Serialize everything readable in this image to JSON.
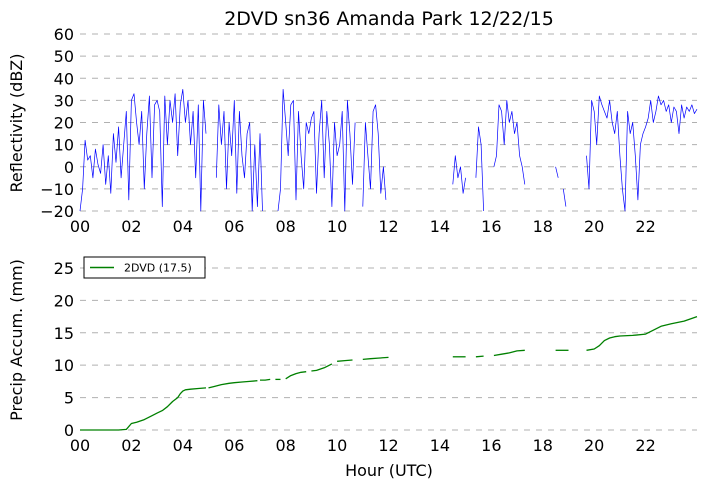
{
  "chart_data": [
    {
      "type": "line",
      "title": "2DVD sn36 Amanda Park 12/22/15",
      "ylabel": "Reflectivity (dBZ)",
      "xlabel": "",
      "xlim": [
        0,
        24
      ],
      "ylim": [
        -20,
        60
      ],
      "x_ticks": [
        0,
        2,
        4,
        6,
        8,
        10,
        12,
        14,
        16,
        18,
        20,
        22
      ],
      "x_tick_labels": [
        "00",
        "02",
        "04",
        "06",
        "08",
        "10",
        "12",
        "14",
        "16",
        "18",
        "20",
        "22"
      ],
      "y_ticks": [
        -20,
        -10,
        0,
        10,
        20,
        30,
        40,
        50,
        60
      ],
      "y_tick_labels": [
        "−20",
        "−10",
        "0",
        "10",
        "20",
        "30",
        "40",
        "50",
        "60"
      ],
      "grid": "horizontal dashed",
      "color": "#0000ff",
      "series": [
        {
          "segments": [
            {
              "x": [
                0.0,
                0.1,
                0.2,
                0.3,
                0.4,
                0.5,
                0.6,
                0.7,
                0.8,
                0.9,
                1.0,
                1.1,
                1.2,
                1.3,
                1.4,
                1.5,
                1.6,
                1.7,
                1.8,
                1.9,
                2.0,
                2.1,
                2.2,
                2.3,
                2.4,
                2.5,
                2.6,
                2.7,
                2.8,
                2.9,
                3.0,
                3.1,
                3.2,
                3.3,
                3.4,
                3.5,
                3.6,
                3.7,
                3.8,
                3.9,
                4.0,
                4.1,
                4.2,
                4.3,
                4.4,
                4.5,
                4.6,
                4.7,
                4.8,
                4.9
              ],
              "y": [
                -20,
                -10,
                12,
                3,
                5,
                -5,
                8,
                1,
                -3,
                10,
                -8,
                5,
                -12,
                15,
                2,
                18,
                -5,
                10,
                25,
                -15,
                30,
                33,
                20,
                10,
                25,
                -10,
                15,
                32,
                -5,
                28,
                30,
                25,
                -18,
                32,
                10,
                30,
                20,
                33,
                5,
                28,
                35,
                20,
                30,
                10,
                25,
                -5,
                28,
                -20,
                30,
                15
              ]
            },
            {
              "x": [
                5.3,
                5.4,
                5.5,
                5.6,
                5.7,
                5.8,
                5.9,
                6.0,
                6.1,
                6.2,
                6.3,
                6.4,
                6.5,
                6.6,
                6.7,
                6.8,
                6.9,
                7.0,
                7.1
              ],
              "y": [
                -5,
                28,
                10,
                25,
                -10,
                20,
                5,
                30,
                -12,
                25,
                5,
                -5,
                15,
                20,
                -20,
                10,
                -18,
                15,
                -20
              ]
            },
            {
              "x": [
                7.7,
                7.8,
                7.9,
                8.0,
                8.1,
                8.2,
                8.3,
                8.4,
                8.5,
                8.6,
                8.7,
                8.8,
                8.9,
                9.0,
                9.1,
                9.2,
                9.3,
                9.4,
                9.5,
                9.6,
                9.7,
                9.8,
                9.9,
                10.0,
                10.1,
                10.2,
                10.3,
                10.4,
                10.5,
                10.6,
                10.7
              ],
              "y": [
                -20,
                -10,
                35,
                20,
                5,
                28,
                30,
                -15,
                25,
                5,
                -10,
                20,
                15,
                22,
                25,
                -12,
                15,
                30,
                -5,
                25,
                10,
                -18,
                20,
                5,
                10,
                25,
                -20,
                30,
                15,
                -8,
                20
              ]
            },
            {
              "x": [
                11.0,
                11.1,
                11.2,
                11.3,
                11.4,
                11.5,
                11.6,
                11.7,
                11.8,
                11.9
              ],
              "y": [
                -18,
                20,
                5,
                -10,
                25,
                28,
                15,
                -12,
                0,
                -15
              ]
            },
            {
              "x": [
                14.5,
                14.6,
                14.7,
                14.8,
                14.9,
                15.0
              ],
              "y": [
                -8,
                5,
                -5,
                0,
                -12,
                -5
              ]
            },
            {
              "x": [
                15.4,
                15.5,
                15.6,
                15.7
              ],
              "y": [
                -5,
                18,
                10,
                -20
              ]
            },
            {
              "x": [
                16.1,
                16.2,
                16.3,
                16.4,
                16.5,
                16.6,
                16.7,
                16.8,
                16.9,
                17.0,
                17.1,
                17.2,
                17.3
              ],
              "y": [
                0,
                5,
                28,
                25,
                10,
                30,
                20,
                25,
                15,
                20,
                5,
                0,
                -8
              ]
            },
            {
              "x": [
                18.5,
                18.6
              ],
              "y": [
                0,
                -5
              ]
            },
            {
              "x": [
                18.8,
                18.9
              ],
              "y": [
                -10,
                -18
              ]
            },
            {
              "x": [
                19.7,
                19.8,
                19.9,
                20.0,
                20.1,
                20.2,
                20.3,
                20.4,
                20.5,
                20.6,
                20.7,
                20.8,
                20.9,
                21.0,
                21.1,
                21.2,
                21.3,
                21.4,
                21.5,
                21.6,
                21.7,
                21.8,
                21.9,
                22.0,
                22.1,
                22.2,
                22.3,
                22.4,
                22.5,
                22.6,
                22.7,
                22.8,
                22.9,
                23.0,
                23.1,
                23.2,
                23.3,
                23.4,
                23.5,
                23.6,
                23.7,
                23.8,
                23.9,
                24.0
              ],
              "y": [
                5,
                -10,
                30,
                25,
                10,
                32,
                28,
                25,
                22,
                30,
                20,
                15,
                25,
                5,
                -10,
                -20,
                25,
                15,
                20,
                5,
                -15,
                10,
                15,
                18,
                22,
                30,
                20,
                25,
                32,
                28,
                30,
                25,
                28,
                20,
                27,
                25,
                15,
                28,
                22,
                27,
                25,
                28,
                24,
                26
              ]
            }
          ]
        }
      ]
    },
    {
      "type": "line",
      "title": "",
      "ylabel": "Precip Accum. (mm)",
      "xlabel": "Hour (UTC)",
      "xlim": [
        0,
        24
      ],
      "ylim": [
        0,
        27
      ],
      "x_ticks": [
        0,
        2,
        4,
        6,
        8,
        10,
        12,
        14,
        16,
        18,
        20,
        22
      ],
      "x_tick_labels": [
        "00",
        "02",
        "04",
        "06",
        "08",
        "10",
        "12",
        "14",
        "16",
        "18",
        "20",
        "22"
      ],
      "y_ticks": [
        0,
        5,
        10,
        15,
        20,
        25
      ],
      "y_tick_labels": [
        "0",
        "5",
        "10",
        "15",
        "20",
        "25"
      ],
      "grid": "horizontal dashed",
      "legend": "top-left",
      "series": [
        {
          "name": "2DVD (17.5)",
          "color": "#008000",
          "segments": [
            {
              "x": [
                0.0,
                0.5,
                1.0,
                1.5,
                1.8,
                2.0,
                2.2,
                2.5,
                2.8,
                3.0,
                3.2,
                3.4,
                3.6,
                3.8,
                3.9,
                4.0,
                4.1,
                4.3,
                4.6,
                4.9
              ],
              "y": [
                0,
                0,
                0,
                0,
                0.1,
                1.0,
                1.2,
                1.6,
                2.2,
                2.6,
                3.0,
                3.6,
                4.4,
                5.0,
                5.6,
                6.0,
                6.2,
                6.3,
                6.4,
                6.5
              ]
            },
            {
              "x": [
                5.0,
                5.2,
                5.5,
                5.8,
                6.0,
                6.3,
                6.6,
                6.9
              ],
              "y": [
                6.5,
                6.7,
                7.0,
                7.2,
                7.3,
                7.4,
                7.5,
                7.6
              ]
            },
            {
              "x": [
                7.0,
                7.2,
                7.4
              ],
              "y": [
                7.7,
                7.7,
                7.8
              ]
            },
            {
              "x": [
                7.6,
                7.8
              ],
              "y": [
                7.8,
                7.8
              ]
            },
            {
              "x": [
                8.0,
                8.2,
                8.4,
                8.6,
                8.8
              ],
              "y": [
                7.9,
                8.4,
                8.7,
                8.9,
                9.0
              ]
            },
            {
              "x": [
                9.0,
                9.2,
                9.5,
                9.8
              ],
              "y": [
                9.1,
                9.2,
                9.6,
                10.2
              ]
            },
            {
              "x": [
                10.0,
                10.3,
                10.6
              ],
              "y": [
                10.6,
                10.7,
                10.8
              ]
            },
            {
              "x": [
                11.0,
                11.3,
                11.6,
                12.0
              ],
              "y": [
                10.9,
                11.0,
                11.1,
                11.2
              ]
            },
            {
              "x": [
                14.5,
                14.8,
                15.0
              ],
              "y": [
                11.3,
                11.3,
                11.3
              ]
            },
            {
              "x": [
                15.4,
                15.7
              ],
              "y": [
                11.3,
                11.4
              ]
            },
            {
              "x": [
                16.1,
                16.4,
                16.7,
                17.0,
                17.3
              ],
              "y": [
                11.5,
                11.7,
                11.9,
                12.2,
                12.3
              ]
            },
            {
              "x": [
                18.5,
                18.8,
                19.0
              ],
              "y": [
                12.3,
                12.3,
                12.3
              ]
            },
            {
              "x": [
                19.7,
                20.0,
                20.2,
                20.4,
                20.6,
                20.8,
                21.0,
                21.5,
                22.0,
                22.3,
                22.6,
                23.0,
                23.5,
                24.0
              ],
              "y": [
                12.3,
                12.5,
                13.0,
                13.8,
                14.2,
                14.4,
                14.5,
                14.6,
                14.8,
                15.4,
                16.0,
                16.4,
                16.8,
                17.5
              ]
            }
          ]
        }
      ]
    }
  ]
}
